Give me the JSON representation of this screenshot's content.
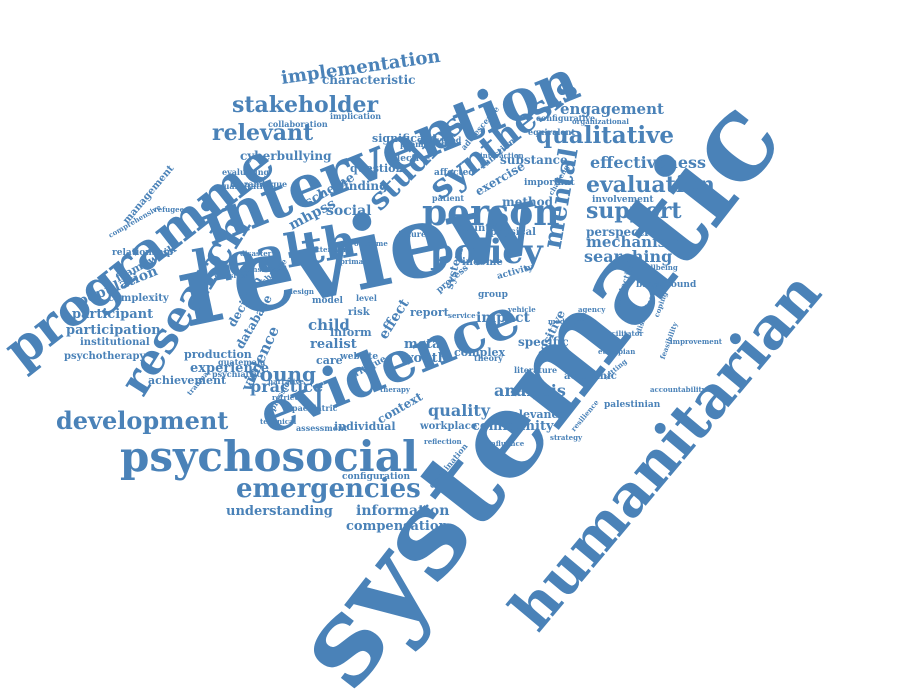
{
  "word_cloud": {
    "color": "#4a82b8",
    "words": [
      "systematic",
      "review",
      "humanitarian",
      "intervention",
      "health",
      "evidence",
      "programme",
      "psychosocial",
      "research",
      "policy",
      "person",
      "synthesis",
      "emergencies",
      "studies",
      "development",
      "mental",
      "qualitative",
      "support",
      "evaluation",
      "stakeholder",
      "relevant",
      "implementation",
      "young",
      "effectiveness",
      "searching",
      "mechanism",
      "engagement",
      "quality",
      "analysis",
      "participant",
      "participation",
      "population",
      "information",
      "compensation",
      "understanding",
      "practice",
      "violence",
      "child",
      "realist",
      "impact",
      "youth",
      "community",
      "characteristic",
      "cyberbullying",
      "finding",
      "social",
      "mhpss",
      "scheme",
      "experience",
      "production",
      "achievement",
      "psychotherapy",
      "institutional",
      "complexity",
      "relationship",
      "framework",
      "management",
      "decision",
      "database",
      "method",
      "substance",
      "exercise",
      "perspective",
      "involvement",
      "background",
      "question",
      "significant",
      "selective",
      "countrie",
      "physical",
      "specific",
      "positive",
      "context",
      "relevance",
      "workplace",
      "individual",
      "configuration",
      "website",
      "critique",
      "complex",
      "academic",
      "palestinian",
      "meta",
      "effect",
      "inform",
      "report",
      "system",
      "income",
      "activity",
      "collaboration",
      "mozambique",
      "evaluating",
      "quantitative",
      "guatemala",
      "psychiatric",
      "affected",
      "important",
      "configurative",
      "equivalent",
      "promotion",
      "adolescence",
      "implication",
      "care",
      "risk",
      "model",
      "level",
      "theory",
      "process",
      "group",
      "examination",
      "literature",
      "function",
      "delivered",
      "vehicle",
      "patient",
      "future",
      "improvement",
      "accountability",
      "comprehensive",
      "sensitive",
      "websites",
      "challenge",
      "organizational",
      "facilitator",
      "protection",
      "ethiopian",
      "interaction",
      "setting",
      "influence",
      "mediator",
      "agency",
      "narrative",
      "outcome",
      "service",
      "design",
      "primary",
      "attention",
      "trauma",
      "disaster",
      "refugee",
      "therapy",
      "feasibility",
      "coping",
      "wellbeing",
      "resilience",
      "dissemination",
      "paediatric",
      "assessment",
      "technical",
      "depression",
      "retrieval",
      "reflection",
      "change",
      "strategy"
    ]
  }
}
